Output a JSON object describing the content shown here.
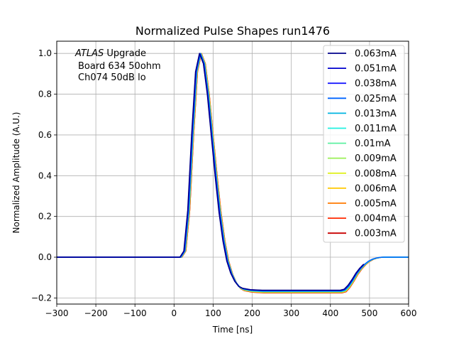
{
  "chart_data": {
    "type": "line",
    "title": "Normalized Pulse Shapes run1476",
    "xlabel": "Time [ns]",
    "ylabel": "Normalized Amplitude (A.U.)",
    "xlim": [
      -300,
      600
    ],
    "ylim": [
      -0.23,
      1.06
    ],
    "xticks": [
      -300,
      -200,
      -100,
      0,
      100,
      200,
      300,
      400,
      500,
      600
    ],
    "xtick_labels": [
      "−300",
      "−200",
      "−100",
      "0",
      "100",
      "200",
      "300",
      "400",
      "500",
      "600"
    ],
    "yticks": [
      -0.2,
      0.0,
      0.2,
      0.4,
      0.6,
      0.8,
      1.0
    ],
    "ytick_labels": [
      "−0.2",
      "0.0",
      "0.2",
      "0.4",
      "0.6",
      "0.8",
      "1.0"
    ],
    "grid": true,
    "legend_position": "top-right",
    "annotation": {
      "italic": "ATLAS",
      "line1_rest": " Upgrade",
      "line2": "Board 634 50ohm",
      "line3": "Ch074 50dB lo"
    },
    "shape_points": {
      "x": [
        -300,
        20,
        30,
        40,
        50,
        60,
        70,
        80,
        90,
        100,
        110,
        120,
        130,
        140,
        150,
        160,
        170,
        180,
        200,
        230,
        430,
        440,
        450,
        460,
        470,
        480,
        490,
        500,
        510,
        520,
        530,
        540,
        560,
        600
      ],
      "y": [
        0,
        0,
        0.03,
        0.23,
        0.6,
        0.91,
        1.0,
        0.95,
        0.8,
        0.6,
        0.4,
        0.22,
        0.08,
        -0.02,
        -0.08,
        -0.12,
        -0.145,
        -0.155,
        -0.162,
        -0.165,
        -0.165,
        -0.16,
        -0.14,
        -0.112,
        -0.08,
        -0.055,
        -0.035,
        -0.02,
        -0.01,
        -0.004,
        -0.001,
        0,
        0,
        0
      ]
    },
    "series": [
      {
        "name": "0.063mA",
        "color": "#00008b",
        "peak_time": 65,
        "undershoot": 0.162,
        "tail_end": 485
      },
      {
        "name": "0.051mA",
        "color": "#0000cd",
        "peak_time": 65.5,
        "undershoot": 0.163,
        "tail_end": 487
      },
      {
        "name": "0.038mA",
        "color": "#1a1aff",
        "peak_time": 66,
        "undershoot": 0.164,
        "tail_end": 489
      },
      {
        "name": "0.025mA",
        "color": "#0064ff",
        "peak_time": 67,
        "undershoot": 0.165,
        "tail_end": 600
      },
      {
        "name": "0.013mA",
        "color": "#00b4e0",
        "peak_time": 68,
        "undershoot": 0.167,
        "tail_end": 600
      },
      {
        "name": "0.011mA",
        "color": "#20f0e0",
        "peak_time": 68,
        "undershoot": 0.168,
        "tail_end": 600
      },
      {
        "name": "0.01mA",
        "color": "#5cf0a0",
        "peak_time": 68.5,
        "undershoot": 0.169,
        "tail_end": 600
      },
      {
        "name": "0.009mA",
        "color": "#a0f060",
        "peak_time": 68.5,
        "undershoot": 0.17,
        "tail_end": 600
      },
      {
        "name": "0.008mA",
        "color": "#e0f020",
        "peak_time": 69,
        "undershoot": 0.171,
        "tail_end": 600
      },
      {
        "name": "0.006mA",
        "color": "#ffc800",
        "peak_time": 69,
        "undershoot": 0.172,
        "tail_end": 600
      },
      {
        "name": "0.005mA",
        "color": "#ff7a00",
        "peak_time": 69.5,
        "undershoot": 0.173,
        "tail_end": 600
      },
      {
        "name": "0.004mA",
        "color": "#ff2800",
        "peak_time": 70,
        "undershoot": 0.174,
        "tail_end": 600
      },
      {
        "name": "0.003mA",
        "color": "#c80000",
        "peak_time": 70,
        "undershoot": 0.175,
        "tail_end": 600
      }
    ]
  }
}
